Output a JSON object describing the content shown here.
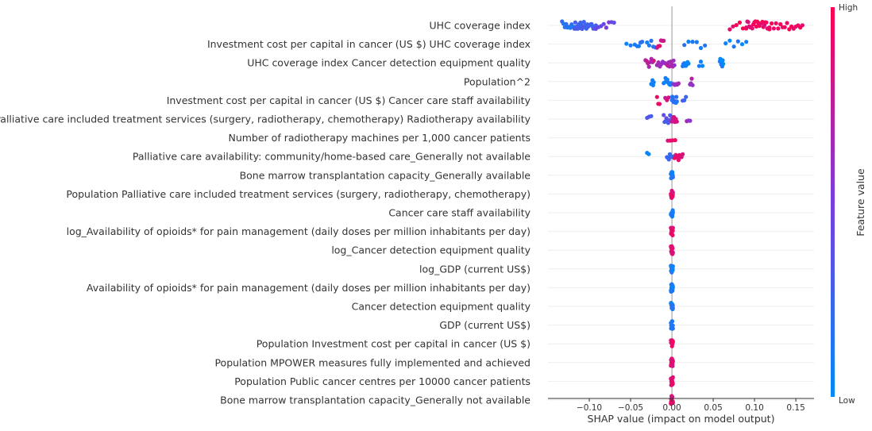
{
  "chart_data": {
    "type": "scatter",
    "title": "",
    "xlabel": "SHAP value (impact on model output)",
    "xlim": [
      -0.15,
      0.172
    ],
    "xticks": [
      -0.1,
      -0.05,
      0.0,
      0.05,
      0.1,
      0.15
    ],
    "xtick_labels": [
      "−0.10",
      "−0.05",
      "0.00",
      "0.05",
      "0.10",
      "0.15"
    ],
    "colorbar": {
      "label": "Feature value",
      "high": "High",
      "low": "Low",
      "color_low": "#008bfb",
      "color_high": "#ff0052"
    },
    "features": [
      {
        "label": "UHC coverage index",
        "groups": [
          [
            -0.133,
            -0.118,
            0.15,
            10
          ],
          [
            -0.118,
            -0.092,
            0.28,
            26
          ],
          [
            -0.092,
            -0.07,
            0.45,
            8
          ],
          [
            0.07,
            0.09,
            0.95,
            6
          ],
          [
            0.09,
            0.118,
            0.92,
            24
          ],
          [
            0.118,
            0.158,
            0.95,
            16
          ]
        ]
      },
      {
        "label": "Investment cost per capital in cancer (US $) UHC coverage index",
        "groups": [
          [
            -0.055,
            -0.045,
            0.1,
            3
          ],
          [
            -0.042,
            -0.036,
            0.15,
            4
          ],
          [
            -0.03,
            -0.02,
            0.12,
            5
          ],
          [
            -0.018,
            -0.01,
            0.85,
            6
          ],
          [
            0.015,
            0.04,
            0.1,
            6
          ],
          [
            0.065,
            0.09,
            0.05,
            6
          ]
        ]
      },
      {
        "label": "UHC coverage index Cancer detection equipment quality",
        "groups": [
          [
            -0.032,
            -0.022,
            0.75,
            8
          ],
          [
            -0.018,
            -0.006,
            0.6,
            8
          ],
          [
            -0.006,
            0.003,
            0.65,
            10
          ],
          [
            0.013,
            0.02,
            0.08,
            8
          ],
          [
            0.033,
            0.037,
            0.05,
            3
          ],
          [
            0.058,
            0.062,
            0.05,
            8
          ]
        ]
      },
      {
        "label": "Population^2",
        "groups": [
          [
            -0.025,
            -0.022,
            0.05,
            5
          ],
          [
            -0.01,
            0.0,
            0.1,
            10
          ],
          [
            0.002,
            0.008,
            0.6,
            5
          ],
          [
            0.022,
            0.025,
            0.65,
            4
          ]
        ]
      },
      {
        "label": "Investment cost per capital in cancer (US $) Cancer care staff availability",
        "groups": [
          [
            -0.018,
            -0.015,
            0.95,
            3
          ],
          [
            -0.008,
            -0.004,
            0.85,
            3
          ],
          [
            0.0,
            0.006,
            0.15,
            12
          ],
          [
            0.013,
            0.017,
            0.3,
            3
          ]
        ]
      },
      {
        "label": "Palliative care included treatment services (surgery, radiotherapy, chemotherapy) Radiotherapy availability",
        "groups": [
          [
            -0.03,
            -0.025,
            0.35,
            3
          ],
          [
            -0.01,
            0.0,
            0.35,
            10
          ],
          [
            0.0,
            0.006,
            0.8,
            6
          ],
          [
            0.018,
            0.022,
            0.6,
            3
          ]
        ]
      },
      {
        "label": "Number of radiotherapy machines per 1,000 cancer patients",
        "groups": [
          [
            -0.005,
            0.004,
            0.9,
            4
          ]
        ]
      },
      {
        "label": "Palliative care availability: community/home-based care_Generally not available",
        "groups": [
          [
            -0.03,
            -0.028,
            0.1,
            2
          ],
          [
            -0.006,
            0.002,
            0.2,
            8
          ],
          [
            0.003,
            0.008,
            0.9,
            4
          ],
          [
            0.009,
            0.013,
            0.9,
            4
          ]
        ]
      },
      {
        "label": "Bone marrow transplantation capacity_Generally available",
        "groups": [
          [
            -0.0012,
            0.0012,
            0.1,
            14
          ]
        ]
      },
      {
        "label": "Population Palliative care included treatment services (surgery, radiotherapy, chemotherapy)",
        "groups": [
          [
            -0.0012,
            0.0012,
            0.9,
            14
          ]
        ]
      },
      {
        "label": "Cancer care staff availability",
        "groups": [
          [
            -0.0012,
            0.0012,
            0.1,
            14
          ]
        ]
      },
      {
        "label": "log_Availability of opioids* for pain management (daily doses per million inhabitants per day)",
        "groups": [
          [
            -0.0012,
            0.0012,
            0.9,
            14
          ]
        ]
      },
      {
        "label": "log_Cancer detection equipment quality",
        "groups": [
          [
            -0.0012,
            0.0012,
            0.9,
            14
          ]
        ]
      },
      {
        "label": "log_GDP (current US$)",
        "groups": [
          [
            -0.0012,
            0.0012,
            0.1,
            14
          ]
        ]
      },
      {
        "label": "Availability of opioids* for pain management (daily doses per million inhabitants per day)",
        "groups": [
          [
            -0.0012,
            0.0012,
            0.1,
            14
          ]
        ]
      },
      {
        "label": "Cancer detection equipment quality",
        "groups": [
          [
            -0.0012,
            0.0012,
            0.1,
            14
          ]
        ]
      },
      {
        "label": "GDP (current US$)",
        "groups": [
          [
            -0.0012,
            0.0012,
            0.1,
            14
          ]
        ]
      },
      {
        "label": "Population Investment cost per capital in cancer (US $)",
        "groups": [
          [
            -0.0012,
            0.0012,
            0.9,
            14
          ]
        ]
      },
      {
        "label": "Population MPOWER measures fully implemented and achieved",
        "groups": [
          [
            -0.0012,
            0.0012,
            0.9,
            14
          ]
        ]
      },
      {
        "label": "Population Public cancer centres per 10000 cancer patients",
        "groups": [
          [
            -0.0012,
            0.0012,
            0.9,
            14
          ]
        ]
      },
      {
        "label": "Bone marrow transplantation capacity_Generally not available",
        "groups": [
          [
            -0.0012,
            0.0012,
            0.9,
            14
          ]
        ]
      }
    ]
  }
}
